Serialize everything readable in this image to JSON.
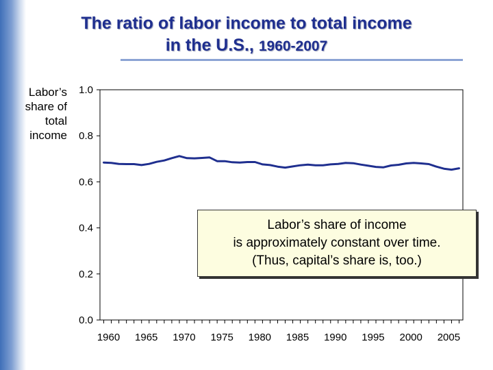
{
  "title": {
    "line1": "The ratio of labor income to total income",
    "line2_prefix": "in the U.S.,",
    "line2_years": "1960-2007"
  },
  "ylabel_lines": [
    "Labor’s",
    "share of",
    "total",
    "income"
  ],
  "annotation": {
    "lines": [
      "Labor’s share of income",
      "is approximately constant over time.",
      "(Thus, capital’s share is, too.)"
    ]
  },
  "colors": {
    "title": "#1f2f8f",
    "series": "#1f2f8f",
    "note_bg": "#fdfde0"
  },
  "chart_data": {
    "type": "line",
    "ylim": [
      0.0,
      1.0
    ],
    "xlim": [
      1960,
      2007
    ],
    "yticks": [
      "0.0",
      "0.2",
      "0.4",
      "0.6",
      "0.8",
      "1.0"
    ],
    "ytick_values": [
      0.0,
      0.2,
      0.4,
      0.6,
      0.8,
      1.0
    ],
    "xtick_labels": [
      "1960",
      "1965",
      "1970",
      "1975",
      "1980",
      "1985",
      "1990",
      "1995",
      "2000",
      "2005"
    ],
    "xtick_values": [
      1960,
      1965,
      1970,
      1975,
      1980,
      1985,
      1990,
      1995,
      2000,
      2005
    ],
    "grid": false,
    "series": [
      {
        "x": [
          1960,
          1961,
          1962,
          1963,
          1964,
          1965,
          1966,
          1967,
          1968,
          1969,
          1970,
          1971,
          1972,
          1973,
          1974,
          1975,
          1976,
          1977,
          1978,
          1979,
          1980,
          1981,
          1982,
          1983,
          1984,
          1985,
          1986,
          1987,
          1988,
          1989,
          1990,
          1991,
          1992,
          1993,
          1994,
          1995,
          1996,
          1997,
          1998,
          1999,
          2000,
          2001,
          2002,
          2003,
          2004,
          2005,
          2006,
          2007
        ],
        "y": [
          0.684,
          0.682,
          0.678,
          0.677,
          0.677,
          0.673,
          0.678,
          0.687,
          0.693,
          0.703,
          0.712,
          0.703,
          0.702,
          0.704,
          0.706,
          0.69,
          0.69,
          0.685,
          0.684,
          0.686,
          0.686,
          0.676,
          0.673,
          0.666,
          0.662,
          0.667,
          0.672,
          0.675,
          0.672,
          0.672,
          0.676,
          0.678,
          0.682,
          0.681,
          0.675,
          0.67,
          0.665,
          0.663,
          0.671,
          0.674,
          0.68,
          0.682,
          0.68,
          0.677,
          0.666,
          0.657,
          0.653,
          0.659
        ]
      }
    ]
  }
}
